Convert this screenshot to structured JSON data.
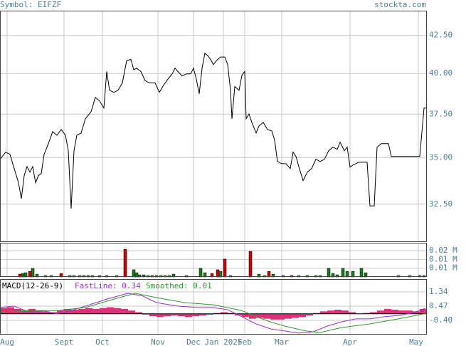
{
  "header": {
    "symbol": "Symbol: EIFZF",
    "site": "stockta.com"
  },
  "chart_data": [
    {
      "type": "line",
      "color": "#000000",
      "log": true,
      "grid": true,
      "xlim": [
        0,
        300
      ],
      "ylim": [
        30.6,
        44.2
      ],
      "yticks": [
        {
          "value": 32.5,
          "label": "32.50"
        },
        {
          "value": 35,
          "label": "35.00"
        },
        {
          "value": 37.5,
          "label": "37.50"
        },
        {
          "value": 40,
          "label": "40.00"
        },
        {
          "value": 42.5,
          "label": "42.50"
        }
      ],
      "xticks": [
        {
          "value": 5,
          "label": "Aug"
        },
        {
          "value": 45,
          "label": "Sept"
        },
        {
          "value": 72,
          "label": "Oct"
        },
        {
          "value": 111,
          "label": "Nov"
        },
        {
          "value": 136,
          "label": "Dec"
        },
        {
          "value": 157,
          "label": "Jan 2025"
        },
        {
          "value": 172,
          "label": "Feb"
        },
        {
          "value": 198,
          "label": "Mar"
        },
        {
          "value": 246,
          "label": "Apr"
        },
        {
          "value": 294,
          "label": "May"
        }
      ],
      "x": [
        0,
        4,
        7,
        10,
        13,
        15,
        17,
        19,
        21,
        23,
        25,
        27,
        29,
        31,
        34,
        37,
        40,
        43,
        46,
        48,
        50,
        52,
        54,
        57,
        60,
        64,
        67,
        70,
        73,
        75,
        77,
        80,
        83,
        86,
        89,
        92,
        94,
        96,
        99,
        102,
        105,
        109,
        112,
        115,
        118,
        121,
        123,
        125,
        128,
        131,
        134,
        136,
        138,
        140,
        142,
        144,
        146,
        148,
        150,
        152,
        155,
        158,
        160,
        162,
        163,
        165,
        168,
        170,
        172,
        173,
        175,
        177,
        180,
        182,
        185,
        188,
        191,
        193,
        195,
        198,
        201,
        204,
        206,
        208,
        210,
        213,
        216,
        219,
        222,
        225,
        228,
        231,
        234,
        237,
        239,
        242,
        244,
        246,
        248,
        252,
        256,
        258,
        260,
        263,
        265,
        268,
        273,
        275,
        280,
        285,
        290,
        295,
        298,
        300
      ],
      "values": [
        34.9,
        35.3,
        35.18,
        34.39,
        33.63,
        32.78,
        34.01,
        34.5,
        34.2,
        34.5,
        33.63,
        34.01,
        34.12,
        35.18,
        35.78,
        36.47,
        36.26,
        36.59,
        36.26,
        35.38,
        32.27,
        35.38,
        36.26,
        36.39,
        37.22,
        37.64,
        38.51,
        38.29,
        37.86,
        40.13,
        38.95,
        38.82,
        38.95,
        39.41,
        40.82,
        40.91,
        40.24,
        40.34,
        40.13,
        39.55,
        39.41,
        39.41,
        38.82,
        39.27,
        39.64,
        39.98,
        40.34,
        40.13,
        39.84,
        39.98,
        39.98,
        40.34,
        39.64,
        38.73,
        40.34,
        41.31,
        41.16,
        40.91,
        40.57,
        40.82,
        41.06,
        41.06,
        40.57,
        38.95,
        37.22,
        39.18,
        38.95,
        39.89,
        40.13,
        37.22,
        37.51,
        37.01,
        36.39,
        36.8,
        37.01,
        36.59,
        36.51,
        35.98,
        34.78,
        34.66,
        34.66,
        34.39,
        35.3,
        35.06,
        34.5,
        33.74,
        34.2,
        34.39,
        34.9,
        34.78,
        34.9,
        35.38,
        35.58,
        35.46,
        35.86,
        35.38,
        35.58,
        34.47,
        34.58,
        34.74,
        34.74,
        34.74,
        32.41,
        32.41,
        35.58,
        35.78,
        35.78,
        35.06,
        35.06,
        35.06,
        35.06,
        35.06,
        37.86,
        37.86
      ]
    },
    {
      "type": "bar",
      "xlim": [
        0,
        300
      ],
      "ylim": [
        0,
        0.0195
      ],
      "yticks": [
        {
          "value": 0.015,
          "label": "0.02 M"
        },
        {
          "value": 0.01,
          "label": "0.01 M"
        },
        {
          "value": 0.005,
          "label": "0.01 M"
        }
      ],
      "x": [
        14,
        16,
        18,
        21,
        23,
        26,
        32,
        36,
        43,
        49,
        52,
        56,
        59,
        62,
        65,
        70,
        75,
        82,
        88,
        94,
        96,
        98,
        101,
        104,
        107,
        110,
        113,
        116,
        119,
        122,
        131,
        141,
        144,
        149,
        153,
        155,
        158,
        162,
        176,
        182,
        186,
        189,
        192,
        199,
        205,
        210,
        216,
        222,
        225,
        231,
        234,
        237,
        241,
        244,
        248,
        254,
        257,
        280,
        288,
        295,
        298
      ],
      "values": [
        0.0016,
        0.002,
        0.0024,
        0.0032,
        0.0049,
        0.0016,
        0.0008,
        0.0008,
        0.002,
        0.0008,
        0.0008,
        0.0008,
        0.0008,
        0.0008,
        0.0008,
        0.0008,
        0.0008,
        0.0008,
        0.0158,
        0.0041,
        0.0024,
        0.0012,
        0.0012,
        0.0008,
        0.0008,
        0.0008,
        0.0008,
        0.0008,
        0.0008,
        0.0016,
        0.0008,
        0.0049,
        0.0024,
        0.002,
        0.0041,
        0.0032,
        0.0102,
        0.0008,
        0.0146,
        0.0016,
        0.0008,
        0.0032,
        0.0016,
        0.0008,
        0.0008,
        0.0008,
        0.0008,
        0.0008,
        0.0008,
        0.0049,
        0.002,
        0.0012,
        0.0049,
        0.0032,
        0.0032,
        0.0049,
        0.0024,
        0.0008,
        0.0008,
        0.0008,
        0.0008
      ],
      "colors": [
        "#cc0000",
        "#1a7a1a",
        "#1a7a1a",
        "#cc0000",
        "#1a7a1a",
        "#1a7a1a",
        "#1a7a1a",
        "#1a7a1a",
        "#cc0000",
        "#1a7a1a",
        "#1a7a1a",
        "#1a7a1a",
        "#1a7a1a",
        "#1a7a1a",
        "#1a7a1a",
        "#1a7a1a",
        "#1a7a1a",
        "#1a7a1a",
        "#cc0000",
        "#1a7a1a",
        "#1a7a1a",
        "#1a7a1a",
        "#1a7a1a",
        "#1a7a1a",
        "#cc0000",
        "#1a7a1a",
        "#1a7a1a",
        "#1a7a1a",
        "#1a7a1a",
        "#1a7a1a",
        "#1a7a1a",
        "#1a7a1a",
        "#1a7a1a",
        "#cc0000",
        "#cc0000",
        "#1a7a1a",
        "#cc0000",
        "#1a7a1a",
        "#cc0000",
        "#1a7a1a",
        "#1a7a1a",
        "#cc0000",
        "#1a7a1a",
        "#1a7a1a",
        "#cc0000",
        "#1a7a1a",
        "#1a7a1a",
        "#1a7a1a",
        "#1a7a1a",
        "#1a7a1a",
        "#1a7a1a",
        "#1a7a1a",
        "#1a7a1a",
        "#1a7a1a",
        "#1a7a1a",
        "#1a7a1a",
        "#1a7a1a",
        "#1a7a1a",
        "#1a7a1a",
        "#1a7a1a",
        "#1a7a1a"
      ]
    },
    {
      "type": "macd",
      "title": "MACD(12-26-9)",
      "xlim": [
        0,
        300
      ],
      "ylim": [
        -1.27,
        2.12
      ],
      "yticks": [
        1.34,
        0.47,
        {
          "value": -0.4,
          "label": "-0.40"
        }
      ],
      "histogram": {
        "color": "#e0307a",
        "x": [
          0,
          5,
          10,
          15,
          20,
          25,
          30,
          35,
          40,
          45,
          50,
          55,
          60,
          65,
          70,
          75,
          80,
          85,
          90,
          95,
          100,
          105,
          110,
          115,
          120,
          125,
          130,
          135,
          140,
          145,
          150,
          155,
          160,
          165,
          170,
          175,
          180,
          185,
          190,
          195,
          200,
          205,
          210,
          215,
          220,
          225,
          230,
          235,
          240,
          245,
          250,
          255,
          260,
          265,
          270,
          275,
          280,
          285,
          290,
          295
        ],
        "values": [
          0.35,
          0.4,
          0.3,
          0.2,
          0.3,
          0.2,
          0.15,
          0.1,
          0.2,
          0.3,
          0.25,
          0.3,
          0.35,
          0.3,
          0.35,
          0.4,
          0.35,
          0.3,
          0.2,
          0.1,
          -0.05,
          -0.15,
          -0.2,
          -0.15,
          -0.1,
          -0.15,
          -0.2,
          -0.15,
          -0.1,
          -0.05,
          0.05,
          0.1,
          0.05,
          -0.1,
          -0.2,
          -0.3,
          -0.25,
          -0.3,
          -0.35,
          -0.35,
          -0.3,
          -0.25,
          -0.2,
          -0.1,
          0.05,
          0.15,
          0.2,
          0.25,
          0.2,
          0.1,
          0.0,
          0.05,
          0.1,
          0.2,
          0.3,
          0.25,
          0.2,
          0.2,
          0.15,
          0.3
        ]
      },
      "series": [
        {
          "name": "FastLine: 0.34",
          "color": "#9933cc",
          "x": [
            0,
            10,
            20,
            30,
            40,
            50,
            60,
            75,
            90,
            100,
            110,
            125,
            140,
            150,
            160,
            170,
            180,
            190,
            200,
            210,
            220,
            230,
            240,
            250,
            260,
            270,
            280,
            290,
            299
          ],
          "values": [
            0.38,
            0.47,
            0.12,
            0.2,
            0.0,
            0.2,
            0.47,
            0.9,
            1.25,
            1.1,
            0.68,
            0.47,
            0.38,
            0.38,
            0.25,
            -0.18,
            -0.62,
            -0.92,
            -1.05,
            -1.18,
            -1.1,
            -0.75,
            -0.49,
            -0.31,
            -0.31,
            -0.18,
            -0.1,
            0.05,
            0.34
          ]
        },
        {
          "name": "Smoothed: 0.01",
          "color": "#339933",
          "x": [
            0,
            20,
            40,
            60,
            80,
            95,
            110,
            130,
            150,
            170,
            180,
            190,
            200,
            215,
            225,
            240,
            260,
            280,
            299
          ],
          "values": [
            0.12,
            0.2,
            0.2,
            0.38,
            0.9,
            1.25,
            0.99,
            0.68,
            0.55,
            0.2,
            -0.18,
            -0.49,
            -0.75,
            -1.05,
            -1.14,
            -0.84,
            -0.62,
            -0.31,
            0.01
          ]
        }
      ]
    }
  ]
}
